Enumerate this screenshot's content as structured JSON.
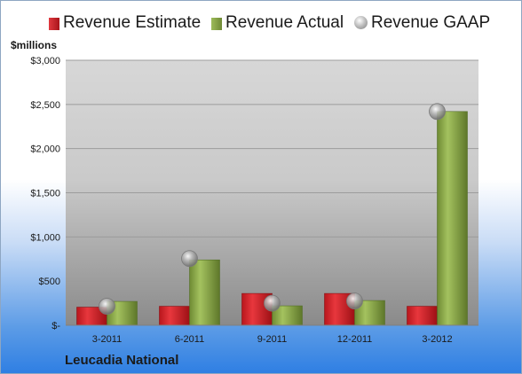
{
  "chart_data": {
    "type": "bar",
    "ylabel": "$millions",
    "categories": [
      "3-2011",
      "6-2011",
      "9-2011",
      "12-2011",
      "3-2012"
    ],
    "series": [
      {
        "name": "Revenue Estimate",
        "kind": "bar",
        "color": "#d11f26",
        "values": [
          205,
          215,
          360,
          360,
          215
        ]
      },
      {
        "name": "Revenue Actual",
        "kind": "bar",
        "color": "#8aa349",
        "values": [
          270,
          740,
          220,
          280,
          2420
        ]
      },
      {
        "name": "Revenue GAAP",
        "kind": "marker",
        "color": "#a9a9a9",
        "values": [
          215,
          755,
          250,
          275,
          2420
        ]
      }
    ],
    "ylim": [
      0,
      3000
    ],
    "yticks": [
      0,
      500,
      1000,
      1500,
      2000,
      2500,
      3000
    ],
    "ytick_labels": [
      "$-",
      "$500",
      "$1,000",
      "$1,500",
      "$2,000",
      "$2,500",
      "$3,000"
    ],
    "grid": true,
    "legend_position": "top"
  },
  "footer": {
    "company": "Leucadia National"
  }
}
